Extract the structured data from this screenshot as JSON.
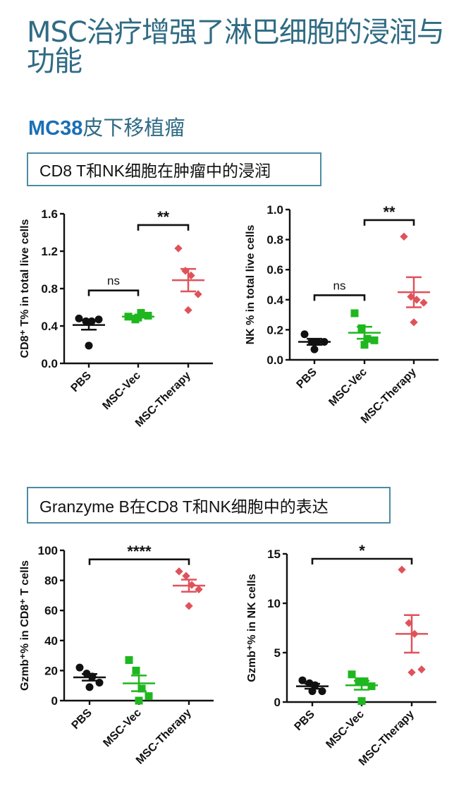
{
  "header": {
    "title": "MSC治疗增强了淋巴细胞的浸润与功能",
    "subtitle_bold": "MC38",
    "subtitle_rest": "皮下移植瘤"
  },
  "sections": [
    {
      "label": "CD8 T和NK细胞在肿瘤中的浸润"
    },
    {
      "label": "Granzyme B在CD8 T和NK细胞中的表达"
    }
  ],
  "colors": {
    "PBS": "#111111",
    "MSC-Vec": "#1fb71f",
    "MSC-Therapy": "#e0525a",
    "title": "#2f6b84",
    "subtitle_bold": "#1a6fb5",
    "box_border": "#4c8ca3"
  },
  "chart_data": [
    {
      "type": "scatter",
      "id": "cd8-infiltration",
      "title": "",
      "categories": [
        "PBS",
        "MSC-Vec",
        "MSC-Therapy"
      ],
      "ylabel": "CD8⁺ T% in total live cells",
      "ylim": [
        0,
        1.6
      ],
      "yticks": [
        0.0,
        0.4,
        0.8,
        1.2,
        1.6
      ],
      "ytick_labels": [
        "0.0",
        "0.4",
        "0.8",
        "1.2",
        "1.6"
      ],
      "series": [
        {
          "name": "PBS",
          "marker": "circle",
          "values": [
            0.48,
            0.45,
            0.45,
            0.47,
            0.19
          ],
          "mean": 0.41,
          "sem": 0.05
        },
        {
          "name": "MSC-Vec",
          "marker": "square",
          "values": [
            0.5,
            0.47,
            0.54,
            0.51,
            0.49
          ],
          "mean": 0.5,
          "sem": 0.01
        },
        {
          "name": "MSC-Therapy",
          "marker": "diamond",
          "values": [
            1.23,
            0.99,
            0.94,
            0.74,
            0.57
          ],
          "mean": 0.89,
          "sem": 0.12
        }
      ],
      "comparisons": [
        {
          "from": "PBS",
          "to": "MSC-Vec",
          "label": "ns",
          "y": 0.78
        },
        {
          "from": "MSC-Vec",
          "to": "MSC-Therapy",
          "label": "**",
          "y": 1.48
        }
      ],
      "grid": false,
      "legend": "none"
    },
    {
      "type": "scatter",
      "id": "nk-infiltration",
      "title": "",
      "categories": [
        "PBS",
        "MSC-Vec",
        "MSC-Therapy"
      ],
      "ylabel": "NK % in total live cells",
      "ylim": [
        0,
        1.0
      ],
      "yticks": [
        0.0,
        0.2,
        0.4,
        0.6,
        0.8,
        1.0
      ],
      "ytick_labels": [
        "0.0",
        "0.2",
        "0.4",
        "0.6",
        "0.8",
        "1.0"
      ],
      "series": [
        {
          "name": "PBS",
          "marker": "circle",
          "values": [
            0.17,
            0.12,
            0.12,
            0.12,
            0.07
          ],
          "mean": 0.12,
          "sem": 0.02
        },
        {
          "name": "MSC-Vec",
          "marker": "square",
          "values": [
            0.31,
            0.21,
            0.14,
            0.13,
            0.1
          ],
          "mean": 0.18,
          "sem": 0.04
        },
        {
          "name": "MSC-Therapy",
          "marker": "diamond",
          "values": [
            0.82,
            0.42,
            0.4,
            0.38,
            0.25
          ],
          "mean": 0.45,
          "sem": 0.1
        }
      ],
      "comparisons": [
        {
          "from": "PBS",
          "to": "MSC-Vec",
          "label": "ns",
          "y": 0.43
        },
        {
          "from": "MSC-Vec",
          "to": "MSC-Therapy",
          "label": "**",
          "y": 0.93
        }
      ],
      "grid": false,
      "legend": "none"
    },
    {
      "type": "scatter",
      "id": "gzmb-cd8",
      "title": "",
      "categories": [
        "PBS",
        "MSC-Vec",
        "MSC-Therapy"
      ],
      "ylabel": "Gzmb⁺%  in CD8⁺ T cells",
      "ylim": [
        0,
        100
      ],
      "yticks": [
        0,
        20,
        40,
        60,
        80,
        100
      ],
      "ytick_labels": [
        "0",
        "20",
        "40",
        "60",
        "80",
        "100"
      ],
      "series": [
        {
          "name": "PBS",
          "marker": "circle",
          "values": [
            22,
            18,
            16,
            12,
            9
          ],
          "mean": 15.5,
          "sem": 2.2
        },
        {
          "name": "MSC-Vec",
          "marker": "square",
          "values": [
            27,
            20,
            8,
            3,
            0
          ],
          "mean": 11.5,
          "sem": 5.2
        },
        {
          "name": "MSC-Therapy",
          "marker": "diamond",
          "values": [
            86,
            83,
            77,
            74,
            63
          ],
          "mean": 76.5,
          "sem": 4.0
        }
      ],
      "comparisons": [
        {
          "from": "PBS",
          "to": "MSC-Therapy",
          "label": "****",
          "y": 94
        }
      ],
      "grid": false,
      "legend": "none"
    },
    {
      "type": "scatter",
      "id": "gzmb-nk",
      "title": "",
      "categories": [
        "PBS",
        "MSC-Vec",
        "MSC-Therapy"
      ],
      "ylabel": "Gzmb⁺%  in NK cells",
      "ylim": [
        0,
        15
      ],
      "yticks": [
        0,
        5,
        10,
        15
      ],
      "ytick_labels": [
        "0",
        "5",
        "10",
        "15"
      ],
      "series": [
        {
          "name": "PBS",
          "marker": "circle",
          "values": [
            2.2,
            1.9,
            1.7,
            1.1,
            1.1
          ],
          "mean": 1.6,
          "sem": 0.25
        },
        {
          "name": "MSC-Vec",
          "marker": "square",
          "values": [
            2.8,
            2.1,
            2.1,
            1.6,
            0.1
          ],
          "mean": 1.7,
          "sem": 0.45
        },
        {
          "name": "MSC-Therapy",
          "marker": "diamond",
          "values": [
            13.4,
            8.0,
            6.9,
            3.3,
            3.0
          ],
          "mean": 6.9,
          "sem": 1.9
        }
      ],
      "comparisons": [
        {
          "from": "PBS",
          "to": "MSC-Therapy",
          "label": "*",
          "y": 14.5
        }
      ],
      "grid": false,
      "legend": "none"
    }
  ]
}
